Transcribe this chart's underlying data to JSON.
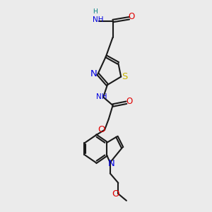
{
  "bg_color": "#ebebeb",
  "bond_color": "#1a1a1a",
  "colors": {
    "N": "#0000e0",
    "O": "#e00000",
    "S": "#c8b400",
    "H": "#008080"
  },
  "lw": 1.5,
  "fs": 7.5
}
